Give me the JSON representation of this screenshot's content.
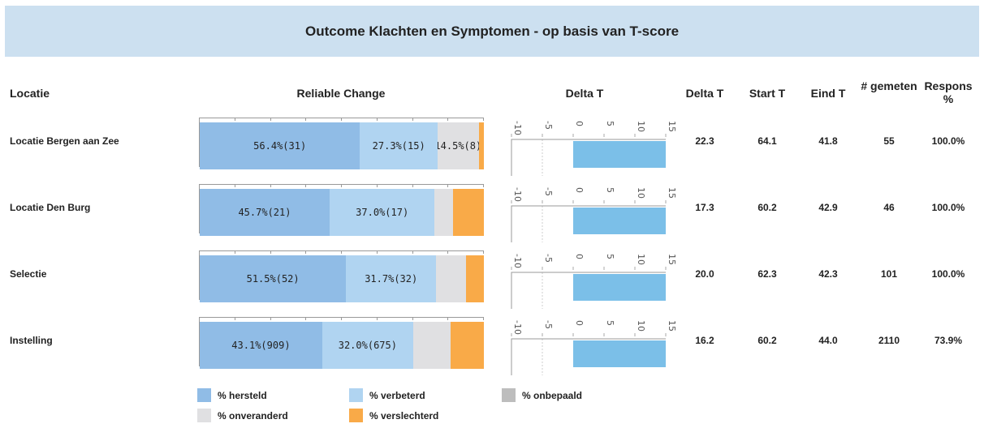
{
  "title": "Outcome Klachten en Symptomen - op basis van T-score",
  "columns": {
    "locatie": "Locatie",
    "rc": "Reliable Change",
    "dtchart": "Delta T",
    "delta": "Delta T",
    "start": "Start T",
    "eind": "Eind T",
    "n": "# gemeten",
    "respons": "Respons %"
  },
  "colors": {
    "hersteld": "#90bce6",
    "verbeterd": "#b0d4f1",
    "onbepaald": "#bdbdbd",
    "onveranderd": "#e0e0e2",
    "verslechterd": "#f9aa48",
    "delta_bar": "#7bbfe8"
  },
  "chart_data": {
    "type": "bar",
    "reliable_change": {
      "categories": [
        "hersteld",
        "verbeterd",
        "onveranderd",
        "verslechterd"
      ],
      "series": [
        {
          "values": [
            56.4,
            27.3,
            14.5,
            1.8
          ],
          "labels": [
            "56.4%(31)",
            "27.3%(15)",
            "14.5%(8)",
            ""
          ]
        },
        {
          "values": [
            45.7,
            37.0,
            6.5,
            10.8
          ],
          "labels": [
            "45.7%(21)",
            "37.0%(17)",
            "",
            ""
          ]
        },
        {
          "values": [
            51.5,
            31.7,
            10.6,
            6.2
          ],
          "labels": [
            "51.5%(52)",
            "31.7%(32)",
            "",
            ""
          ]
        },
        {
          "values": [
            43.1,
            32.0,
            13.1,
            11.8
          ],
          "labels": [
            "43.1%(909)",
            "32.0%(675)",
            "",
            ""
          ]
        }
      ]
    },
    "delta_t": {
      "xlim": [
        -10,
        15
      ],
      "ticks": [
        "-10",
        "-5",
        "0",
        "5",
        "10",
        "15"
      ]
    }
  },
  "rows": [
    {
      "locatie": "Locatie Bergen aan Zee",
      "delta": "22.3",
      "start": "64.1",
      "eind": "41.8",
      "n": "55",
      "respons": "100.0%"
    },
    {
      "locatie": "Locatie Den Burg",
      "delta": "17.3",
      "start": "60.2",
      "eind": "42.9",
      "n": "46",
      "respons": "100.0%"
    },
    {
      "locatie": "Selectie",
      "delta": "20.0",
      "start": "62.3",
      "eind": "42.3",
      "n": "101",
      "respons": "100.0%"
    },
    {
      "locatie": "Instelling",
      "delta": "16.2",
      "start": "60.2",
      "eind": "44.0",
      "n": "2110",
      "respons": "73.9%"
    }
  ],
  "legend": [
    "% hersteld",
    "% verbeterd",
    "% onbepaald",
    "% onveranderd",
    "% verslechterd"
  ]
}
